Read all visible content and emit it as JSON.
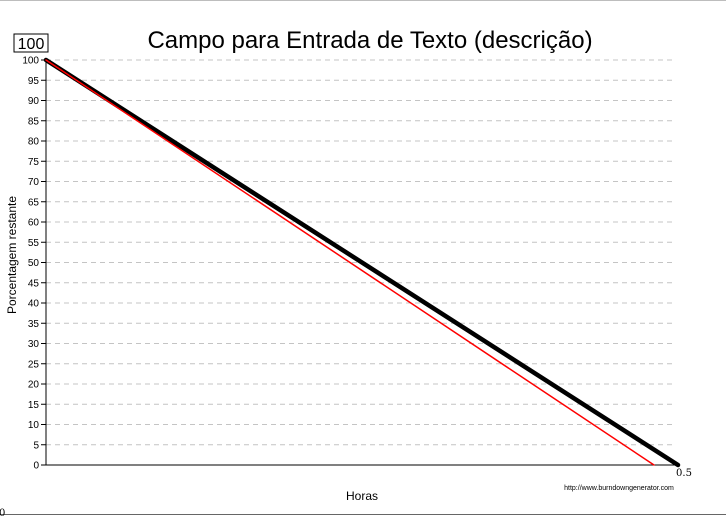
{
  "chart_data": {
    "type": "line",
    "title": "Campo para Entrada de Texto (descrição)",
    "xlabel": "Horas",
    "ylabel": "Porcentagem restante",
    "badge": "100",
    "credit": "http://www.burndowngenerator.com",
    "x_ticks": [
      "0",
      "0.5"
    ],
    "ylim": [
      0,
      100
    ],
    "xlim": [
      0,
      0.5
    ],
    "y_ticks": [
      0,
      5,
      10,
      15,
      20,
      25,
      30,
      35,
      40,
      45,
      50,
      55,
      60,
      65,
      70,
      75,
      80,
      85,
      90,
      95,
      100
    ],
    "grid": true,
    "series": [
      {
        "color": "#000000",
        "x": [
          0,
          0.5
        ],
        "y": [
          100,
          0
        ]
      },
      {
        "color": "#ff0000",
        "x": [
          0,
          0.481
        ],
        "y": [
          100,
          0
        ]
      }
    ]
  }
}
